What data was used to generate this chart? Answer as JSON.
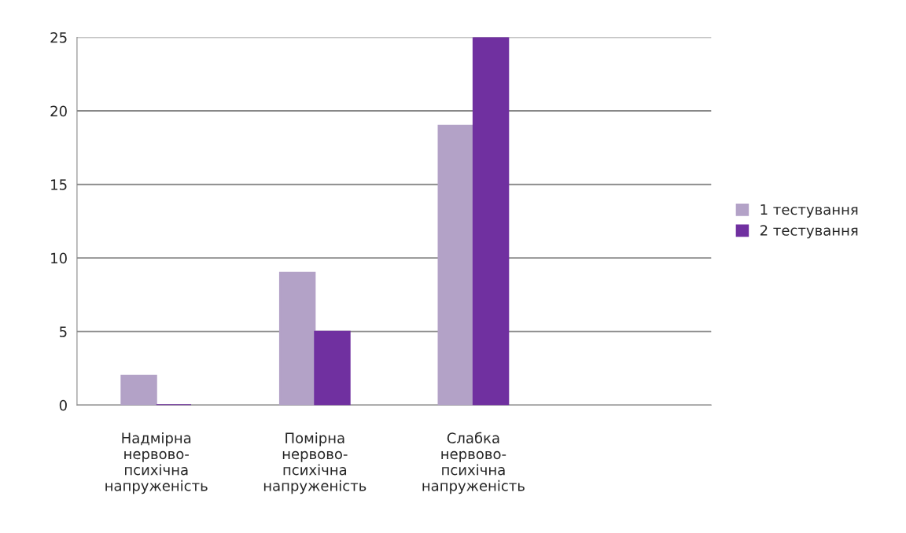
{
  "chart_data": {
    "type": "bar",
    "categories": [
      "Надмірна нервово-психічна напруженість",
      "Помірна нервово-психічна напруженість",
      "Слабка нервово-психічна напруженість",
      null
    ],
    "series": [
      {
        "name": "1 тестування",
        "color": "#b3a2c7",
        "values": [
          2,
          9,
          19,
          null
        ]
      },
      {
        "name": "2 тестування",
        "color": "#7030a0",
        "values": [
          0,
          5,
          25,
          null
        ]
      }
    ],
    "ylim": [
      0,
      25
    ],
    "yticks": [
      0,
      5,
      10,
      15,
      20,
      25
    ],
    "grid": "y",
    "legend": "right"
  }
}
